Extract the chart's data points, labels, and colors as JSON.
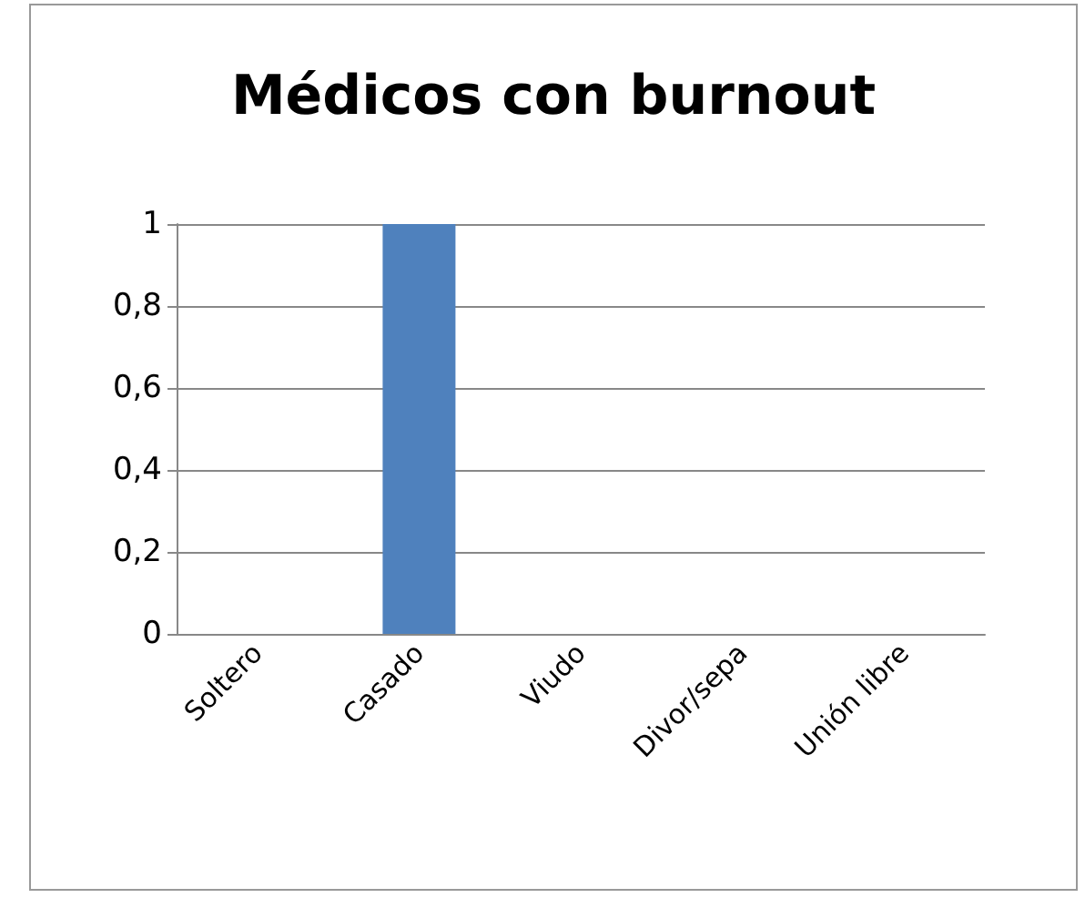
{
  "chart_data": {
    "type": "bar",
    "title": "Médicos con burnout",
    "categories": [
      "Soltero",
      "Casado",
      "Viudo",
      "Divor/sepa",
      "Unión libre"
    ],
    "values": [
      0,
      1,
      0,
      0,
      0
    ],
    "color": "#4f81bd",
    "ylim": [
      0,
      1
    ],
    "yticks": [
      0,
      {
        "value": 0.2,
        "label": "0,2"
      },
      {
        "value": 0.4,
        "label": "0,4"
      },
      {
        "value": 0.6,
        "label": "0,6"
      },
      {
        "value": 0.8,
        "label": "0,8"
      },
      1
    ],
    "grid": true
  }
}
